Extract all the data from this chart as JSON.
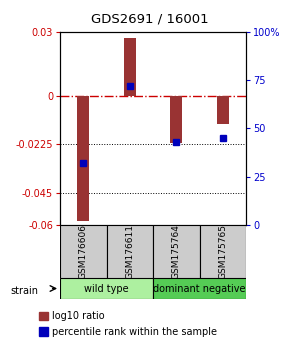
{
  "title": "GDS2691 / 16001",
  "samples": [
    "GSM176606",
    "GSM176611",
    "GSM175764",
    "GSM175765"
  ],
  "log10_ratio": [
    -0.058,
    0.027,
    -0.022,
    -0.013
  ],
  "percentile": [
    32,
    72,
    43,
    45
  ],
  "ylim_left": [
    -0.06,
    0.03
  ],
  "ylim_right": [
    0,
    100
  ],
  "yticks_left": [
    0.03,
    0,
    -0.0225,
    -0.045,
    -0.06
  ],
  "ytick_labels_left": [
    "0.03",
    "0",
    "-0.0225",
    "-0.045",
    "-0.06"
  ],
  "yticks_right": [
    100,
    75,
    50,
    25,
    0
  ],
  "ytick_labels_right": [
    "100%",
    "75",
    "50",
    "25",
    "0"
  ],
  "hlines_dotted": [
    -0.0225,
    -0.045
  ],
  "group_colors": [
    "#adf0a0",
    "#55cc55"
  ],
  "bar_color": "#993333",
  "dot_color": "#0000bb",
  "bar_width": 0.25,
  "strain_label": "strain",
  "legend_red_label": "log10 ratio",
  "legend_blue_label": "percentile rank within the sample",
  "fig_width": 3.0,
  "fig_height": 3.54,
  "bg_color": "#ffffff",
  "plot_bg": "#ffffff",
  "label_area_color": "#cccccc",
  "left_label_color": "#cc0000",
  "right_label_color": "#0000cc"
}
